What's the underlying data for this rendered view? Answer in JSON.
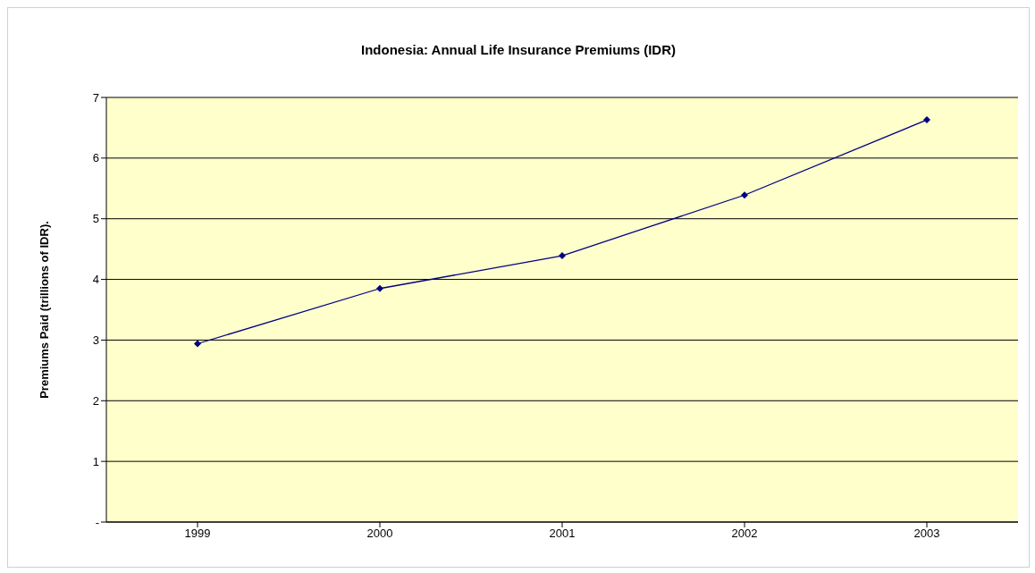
{
  "chart_data": {
    "type": "line",
    "title": "Indonesia: Annual Life Insurance Premiums (IDR)",
    "ylabel": "Premiums Paid (trillions of IDR).",
    "categories": [
      "1999",
      "2000",
      "2001",
      "2002",
      "2003"
    ],
    "series": [
      {
        "color": "#000080",
        "values": [
          2.94,
          3.85,
          4.39,
          5.39,
          6.63
        ]
      }
    ],
    "ylim": [
      0,
      7
    ],
    "yticks": [
      {
        "value": 0,
        "label": "-"
      },
      1,
      2,
      3,
      4,
      5,
      6,
      7
    ],
    "grid": "y",
    "marker": "diamond",
    "line_style": "solid"
  }
}
